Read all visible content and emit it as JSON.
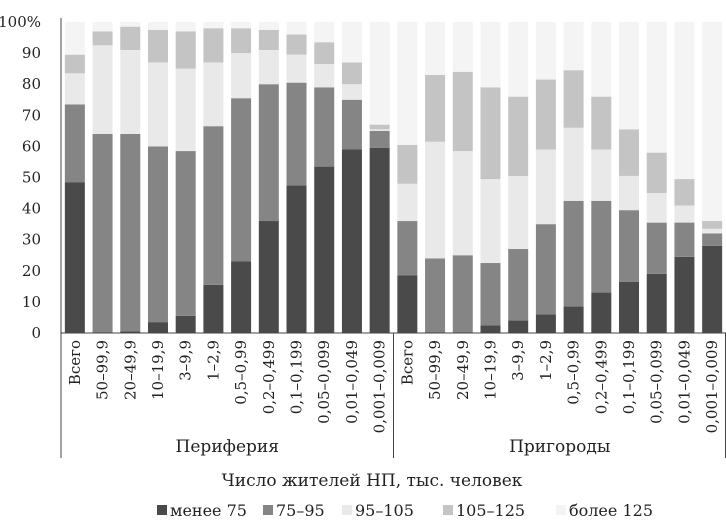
{
  "chart_data": {
    "type": "bar",
    "stacked": true,
    "xlabel": "Число жителей НП, тыс. человек",
    "ylim": [
      0,
      100
    ],
    "yticks": [
      "0",
      "10",
      "20",
      "30",
      "40",
      "50",
      "60",
      "70",
      "80",
      "90",
      "100%"
    ],
    "grid": false,
    "legend_position": "bottom",
    "groups": [
      {
        "label": "Периферия",
        "categories": [
          "Всего",
          "50–99,9",
          "20–49,9",
          "10–19,9",
          "3–9,9",
          "1–2,9",
          "0,5–0,99",
          "0,2–0,499",
          "0,1–0,199",
          "0,05–0,099",
          "0,01–0,049",
          "0,001–0,009"
        ]
      },
      {
        "label": "Пригороды",
        "categories": [
          "Всего",
          "50–99,9",
          "20–49,9",
          "10–19,9",
          "3–9,9",
          "1–2,9",
          "0,5–0,99",
          "0,2–0,499",
          "0,1–0,199",
          "0,05–0,099",
          "0,01–0,049",
          "0,001–0,009"
        ]
      }
    ],
    "series": [
      {
        "name": "менее 75",
        "color": "#4a4a4a",
        "values": [
          48.5,
          0,
          0.5,
          3.5,
          5.5,
          15.5,
          23,
          36,
          47.5,
          53.5,
          59,
          59.5,
          18.5,
          0,
          0,
          2.5,
          4,
          6,
          8.5,
          13,
          16.5,
          19,
          24.5,
          28
        ]
      },
      {
        "name": "75–95",
        "color": "#858585",
        "values": [
          25,
          64,
          63.5,
          56.5,
          53,
          51,
          52.5,
          44,
          33,
          25.5,
          16,
          5.5,
          17.5,
          24,
          25,
          20,
          23,
          29,
          34,
          29.5,
          23,
          16.5,
          11,
          4
        ]
      },
      {
        "name": "95–105",
        "color": "#e9e9e9",
        "values": [
          10,
          28.5,
          27,
          27,
          26.5,
          20.5,
          14.5,
          11,
          9,
          7.5,
          5,
          0.5,
          12,
          37.5,
          33.5,
          27,
          23.5,
          24,
          23.5,
          16.5,
          11,
          9.5,
          5.5,
          1.5
        ]
      },
      {
        "name": "105–125",
        "color": "#c4c4c4",
        "values": [
          6,
          4.5,
          7.5,
          10.5,
          12,
          11,
          8,
          6.5,
          6.5,
          7,
          7,
          1.5,
          12.5,
          21.5,
          25.5,
          29.5,
          25.5,
          22.5,
          18.5,
          17,
          15,
          13,
          8.5,
          2.5
        ]
      },
      {
        "name": "более 125",
        "color": "#f4f4f4",
        "values": [
          10.5,
          3,
          1.5,
          2.5,
          3,
          2,
          2,
          2.5,
          4,
          6.5,
          13,
          33,
          39.5,
          17,
          16,
          21,
          24,
          18.5,
          15.5,
          24,
          34.5,
          42,
          50.5,
          64
        ]
      }
    ]
  }
}
